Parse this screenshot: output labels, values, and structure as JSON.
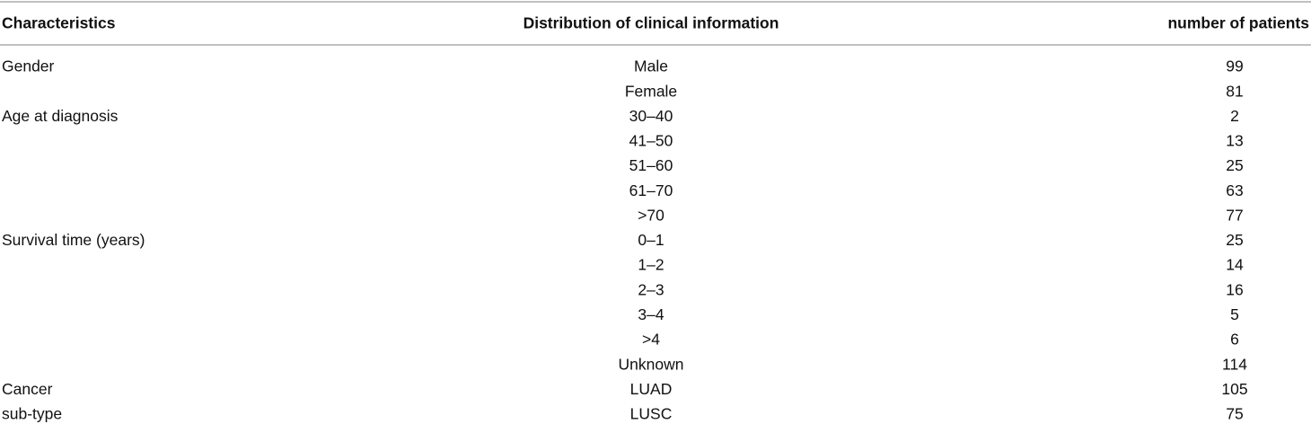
{
  "table": {
    "header": [
      "Characteristics",
      "Distribution of clinical information",
      "number of patients"
    ],
    "groups": [
      {
        "characteristic": [
          "Gender"
        ],
        "items": [
          {
            "label": "Male",
            "count": 99
          },
          {
            "label": "Female",
            "count": 81
          }
        ]
      },
      {
        "characteristic": [
          "Age at diagnosis"
        ],
        "items": [
          {
            "label": "30–40",
            "count": 2
          },
          {
            "label": "41–50",
            "count": 13
          },
          {
            "label": "51–60",
            "count": 25
          },
          {
            "label": "61–70",
            "count": 63
          },
          {
            "label": ">70",
            "count": 77
          }
        ]
      },
      {
        "characteristic": [
          "Survival time (years)"
        ],
        "items": [
          {
            "label": "0–1",
            "count": 25
          },
          {
            "label": "1–2",
            "count": 14
          },
          {
            "label": "2–3",
            "count": 16
          },
          {
            "label": "3–4",
            "count": 5
          },
          {
            "label": ">4",
            "count": 6
          },
          {
            "label": "Unknown",
            "count": 114
          }
        ]
      },
      {
        "characteristic": [
          "Cancer",
          "sub-type"
        ],
        "items": [
          {
            "label": "LUAD",
            "count": 105
          },
          {
            "label": "LUSC",
            "count": 75
          }
        ]
      }
    ]
  }
}
